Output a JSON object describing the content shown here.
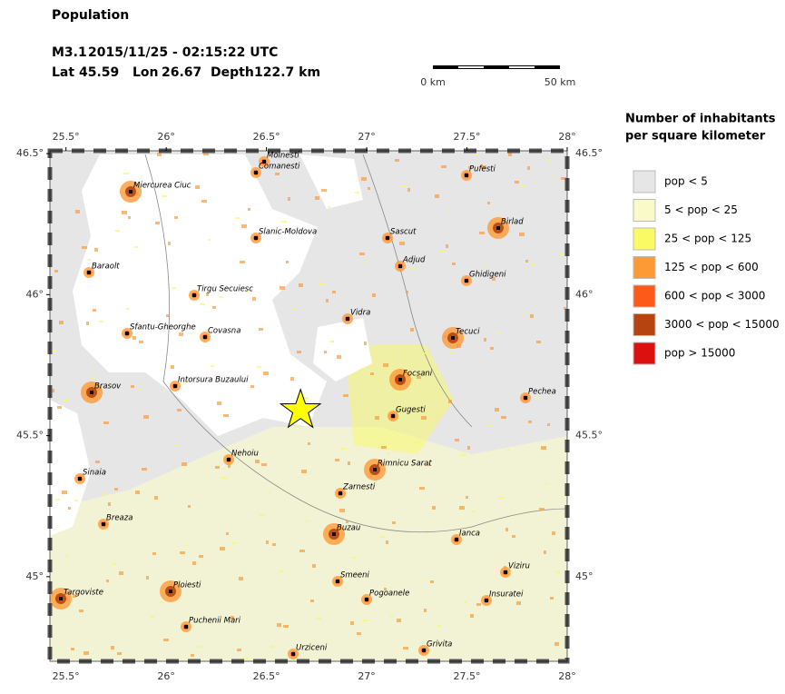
{
  "header": {
    "title": "Population",
    "event": {
      "magnitude": "M3.1",
      "time": "2015/11/25 - 02:15:22 UTC",
      "lat_label": "Lat",
      "lat": 45.59,
      "lon_label": "Lon",
      "lon": 26.67,
      "depth_label": "Depth",
      "depth": "122.7 km"
    }
  },
  "scale_bar": {
    "start": "0 km",
    "end": "50 km"
  },
  "map": {
    "lonticks": [
      {
        "value": 25.5,
        "label": "25.5°"
      },
      {
        "value": 26,
        "label": "26°"
      },
      {
        "value": 26.5,
        "label": "26.5°"
      },
      {
        "value": 27,
        "label": "27°"
      },
      {
        "value": 27.5,
        "label": "27.5°"
      },
      {
        "value": 28,
        "label": "28°"
      }
    ],
    "latticks": [
      {
        "value": 46.5,
        "label": "46.5°"
      },
      {
        "value": 46,
        "label": "46°"
      },
      {
        "value": 45.5,
        "label": "45.5°"
      },
      {
        "value": 45,
        "label": "45°"
      }
    ],
    "cities": [
      "Moinesti",
      "Comanesti",
      "Miercurea Ciuc",
      "Pufesti",
      "Birlad",
      "Sascut",
      "Slanic-Moldova",
      "Adjud",
      "Baraolt",
      "Ghidigeni",
      "Tirgu Secuiesc",
      "Vidra",
      "Sfantu-Gheorghe",
      "Covasna",
      "Tecuci",
      "Focsani",
      "Intorsura Buzaului",
      "Brasov",
      "Pechea",
      "Gugesti",
      "Nehoiu",
      "Rimnicu Sarat",
      "Sinaia",
      "Zarnesti",
      "Breaza",
      "Buzau",
      "Ianca",
      "Viziru",
      "Smeeni",
      "Ploiesti",
      "Pogoanele",
      "Insuratei",
      "Targoviste",
      "Puchenii Mari",
      "Urziceni",
      "Grivita"
    ]
  },
  "legend": {
    "title": [
      "Number of inhabitants",
      "per square kilometer"
    ],
    "entries": [
      {
        "label": "pop < 5",
        "color": "#e6e6e6"
      },
      {
        "label": "5 < pop < 25",
        "color": "#fafac8"
      },
      {
        "label": "25 < pop < 125",
        "color": "#fafa64"
      },
      {
        "label": "125 < pop < 600",
        "color": "#fd9a36"
      },
      {
        "label": "600 < pop < 3000",
        "color": "#fd5a1a"
      },
      {
        "label": "3000 < pop < 15000",
        "color": "#b54410"
      },
      {
        "label": "pop > 15000",
        "color": "#dd1010"
      }
    ]
  }
}
